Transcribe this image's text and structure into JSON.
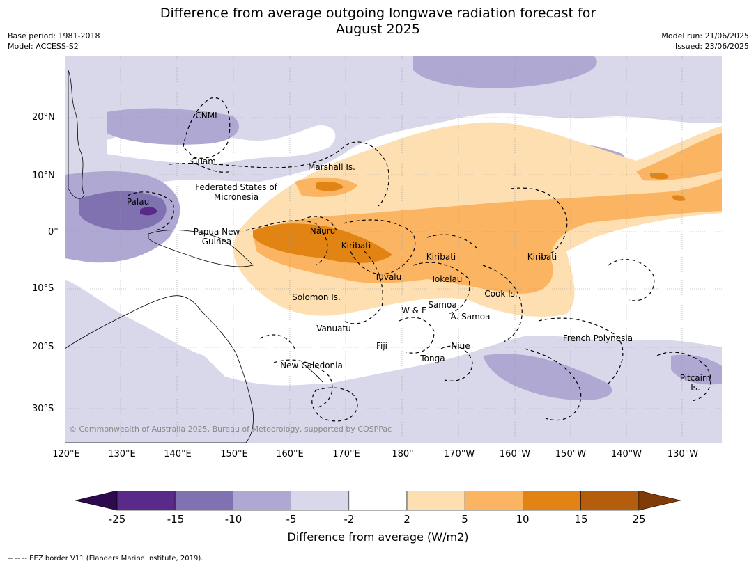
{
  "title_line1": "Difference from average outgoing longwave radiation forecast for",
  "title_line2": "August 2025",
  "base_period": "Base period: 1981-2018",
  "model": "Model: ACCESS-S2",
  "model_run": "Model run: 21/06/2025",
  "issued": "Issued: 23/06/2025",
  "lat_ticks": [
    "20°N",
    "10°N",
    "0°",
    "10°S",
    "20°S",
    "30°S"
  ],
  "lon_ticks": [
    "120°E",
    "130°E",
    "140°E",
    "150°E",
    "160°E",
    "170°E",
    "180°",
    "170°W",
    "160°W",
    "150°W",
    "140°W",
    "130°W"
  ],
  "regions": [
    "CNMI",
    "Guam",
    "Marshall Is.",
    "Federated States of Micronesia",
    "Palau",
    "Papua New Guinea",
    "Nauru",
    "Kiribati",
    "Kiribati",
    "Kiribati",
    "Tuvalu",
    "Tokelau",
    "Cook Is.",
    "Solomon Is.",
    "W & F",
    "Samoa",
    "A. Samoa",
    "Vanuatu",
    "Fiji",
    "Niue",
    "Tonga",
    "New Caledonia",
    "French Polynesia",
    "Pitcairn Is."
  ],
  "copyright": "© Commonwealth of Australia 2025, Bureau of Meteorology, supported by COSPPac",
  "colorbar": {
    "title": "Difference from average (W/m2)",
    "labels": [
      "-25",
      "-15",
      "-10",
      "-5",
      "-2",
      "2",
      "5",
      "10",
      "15",
      "25"
    ],
    "colors": [
      "#2d0a4e",
      "#5a2a8a",
      "#8071b0",
      "#aea8d2",
      "#d8d8ea",
      "#ffffff",
      "#fddfb1",
      "#fbb562",
      "#e18413",
      "#b45d0c",
      "#7f3b08"
    ]
  },
  "footer": "--  --  -- EEZ border V11 (Flanders Marine Institute, 2019)."
}
